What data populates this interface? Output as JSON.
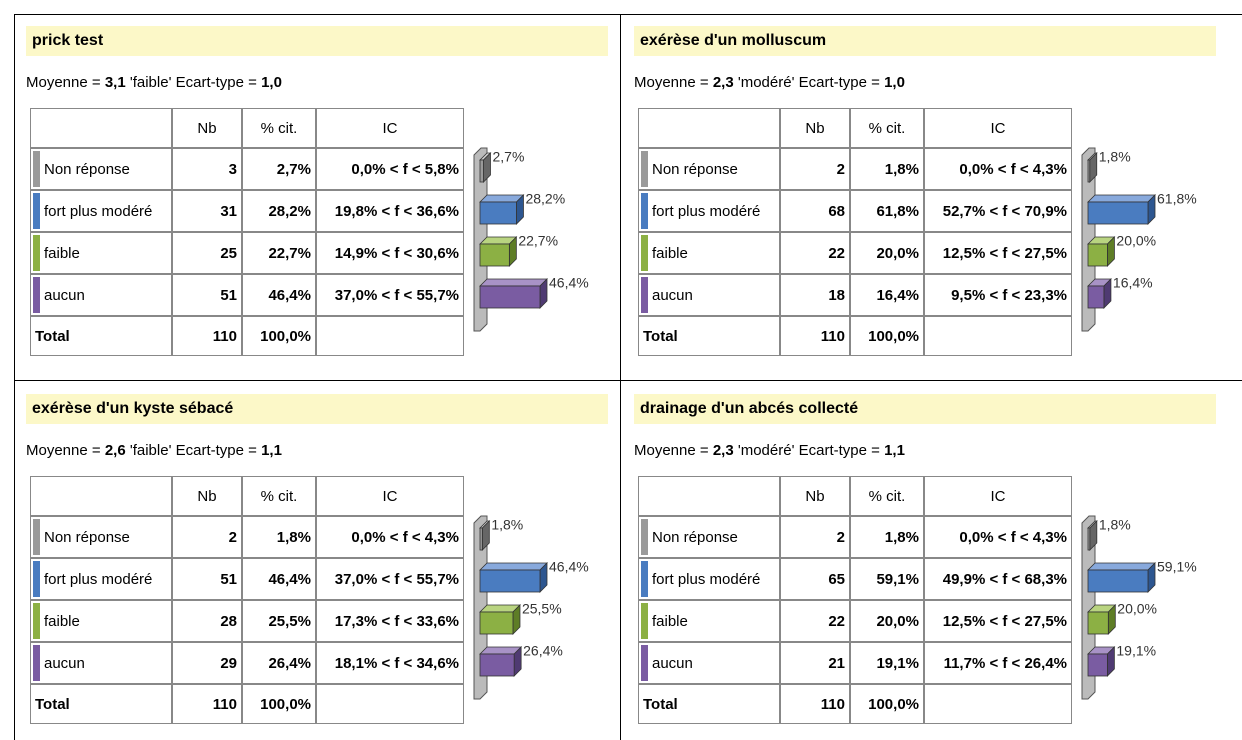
{
  "panels": [
    {
      "title": "prick test",
      "subtitle": {
        "mean_label": "Moyenne =",
        "mean": "3,1",
        "qualifier": "'faible'",
        "sd_label": "Ecart-type =",
        "sd": "1,0"
      },
      "header": [
        "Nb",
        "% cit.",
        "IC"
      ],
      "rows": [
        [
          "Non réponse",
          "3",
          "2,7%",
          "0,0% < f < 5,8%"
        ],
        [
          "fort plus modéré",
          "31",
          "28,2%",
          "19,8% < f < 36,6%"
        ],
        [
          "faible",
          "25",
          "22,7%",
          "14,9% < f < 30,6%"
        ],
        [
          "aucun",
          "51",
          "46,4%",
          "37,0% < f < 55,7%"
        ]
      ],
      "total": [
        "Total",
        "110",
        "100,0%"
      ],
      "chart": {
        "values": [
          2.7,
          28.2,
          22.7,
          46.4
        ],
        "value_labels": [
          "2,7%",
          "28,2%",
          "22,7%",
          "46,4%"
        ]
      }
    },
    {
      "title": "exérèse d'un molluscum",
      "subtitle": {
        "mean_label": "Moyenne =",
        "mean": "2,3",
        "qualifier": "'modéré'",
        "sd_label": "Ecart-type =",
        "sd": "1,0"
      },
      "header": [
        "Nb",
        "% cit.",
        "IC"
      ],
      "rows": [
        [
          "Non réponse",
          "2",
          "1,8%",
          "0,0% < f < 4,3%"
        ],
        [
          "fort plus modéré",
          "68",
          "61,8%",
          "52,7% < f < 70,9%"
        ],
        [
          "faible",
          "22",
          "20,0%",
          "12,5% < f < 27,5%"
        ],
        [
          "aucun",
          "18",
          "16,4%",
          "9,5% < f < 23,3%"
        ]
      ],
      "total": [
        "Total",
        "110",
        "100,0%"
      ],
      "chart": {
        "values": [
          1.8,
          61.8,
          20.0,
          16.4
        ],
        "value_labels": [
          "1,8%",
          "61,8%",
          "20,0%",
          "16,4%"
        ]
      }
    },
    {
      "title": "exérèse d'un kyste sébacé",
      "subtitle": {
        "mean_label": "Moyenne =",
        "mean": "2,6",
        "qualifier": "'faible'",
        "sd_label": "Ecart-type =",
        "sd": "1,1"
      },
      "header": [
        "Nb",
        "% cit.",
        "IC"
      ],
      "rows": [
        [
          "Non réponse",
          "2",
          "1,8%",
          "0,0% < f < 4,3%"
        ],
        [
          "fort plus modéré",
          "51",
          "46,4%",
          "37,0% < f < 55,7%"
        ],
        [
          "faible",
          "28",
          "25,5%",
          "17,3% < f < 33,6%"
        ],
        [
          "aucun",
          "29",
          "26,4%",
          "18,1% < f < 34,6%"
        ]
      ],
      "total": [
        "Total",
        "110",
        "100,0%"
      ],
      "chart": {
        "values": [
          1.8,
          46.4,
          25.5,
          26.4
        ],
        "value_labels": [
          "1,8%",
          "46,4%",
          "25,5%",
          "26,4%"
        ]
      }
    },
    {
      "title": "drainage d'un abcés collecté",
      "subtitle": {
        "mean_label": "Moyenne =",
        "mean": "2,3",
        "qualifier": "'modéré'",
        "sd_label": "Ecart-type =",
        "sd": "1,1"
      },
      "header": [
        "Nb",
        "% cit.",
        "IC"
      ],
      "rows": [
        [
          "Non réponse",
          "2",
          "1,8%",
          "0,0% < f < 4,3%"
        ],
        [
          "fort plus modéré",
          "65",
          "59,1%",
          "49,9% < f < 68,3%"
        ],
        [
          "faible",
          "22",
          "20,0%",
          "12,5% < f < 27,5%"
        ],
        [
          "aucun",
          "21",
          "19,1%",
          "11,7% < f < 26,4%"
        ]
      ],
      "total": [
        "Total",
        "110",
        "100,0%"
      ],
      "chart": {
        "values": [
          1.8,
          59.1,
          20.0,
          19.1
        ],
        "value_labels": [
          "1,8%",
          "59,1%",
          "20,0%",
          "19,1%"
        ]
      }
    }
  ]
}
